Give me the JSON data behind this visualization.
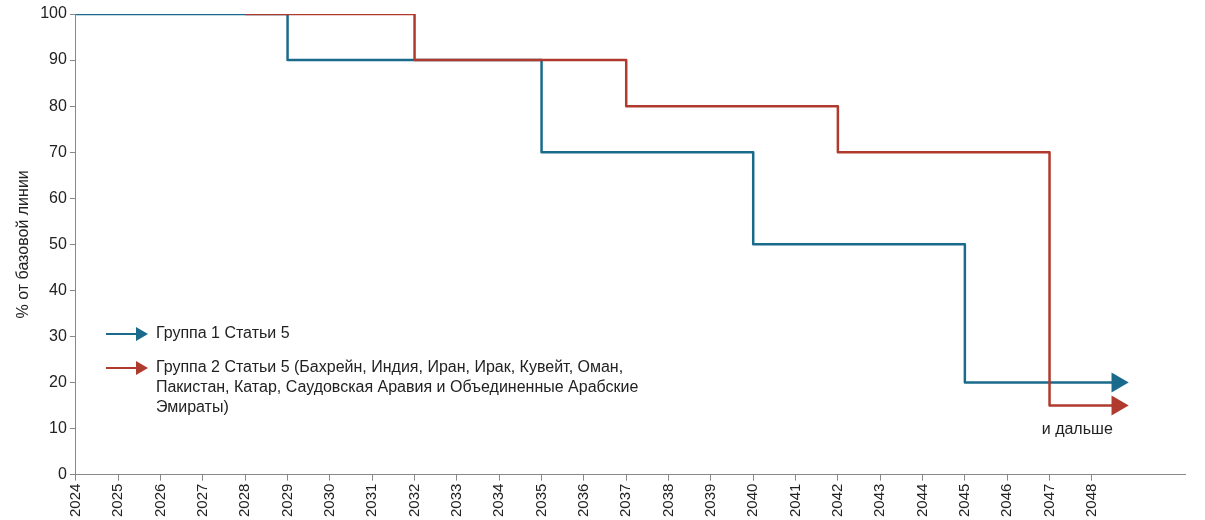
{
  "chart_data": {
    "type": "step",
    "ylabel": "% от базовой линии",
    "xlim": [
      2024,
      2050.2
    ],
    "xticks": [
      2024,
      2025,
      2026,
      2027,
      2028,
      2029,
      2030,
      2031,
      2032,
      2033,
      2034,
      2035,
      2036,
      2037,
      2038,
      2039,
      2040,
      2041,
      2042,
      2043,
      2044,
      2045,
      2046,
      2047,
      2048
    ],
    "ylim": [
      0,
      100
    ],
    "yticks": [
      0,
      10,
      20,
      30,
      40,
      50,
      60,
      70,
      80,
      90,
      100
    ],
    "grid": false,
    "legend": "bottom left",
    "series": [
      {
        "name": "Группа 1 Статьи 5",
        "color": "#1a6a8c",
        "x": [
          2024,
          2029,
          2035,
          2040,
          2045,
          2048.6
        ],
        "values": [
          100,
          90,
          70,
          50,
          20,
          20
        ]
      },
      {
        "name": "Группа 2 Статьи 5 (Бахрейн, Индия, Иран, Ирак, Кувейт, Оман, Пакистан, Катар, Саудовская Аравия и Объединенные Арабские Эмираты)",
        "color": "#b03a2e",
        "x": [
          2028,
          2032,
          2037,
          2042,
          2047,
          2048.6
        ],
        "values": [
          100,
          90,
          80,
          70,
          15,
          15
        ]
      }
    ],
    "annotations": [
      "и дальше"
    ]
  }
}
